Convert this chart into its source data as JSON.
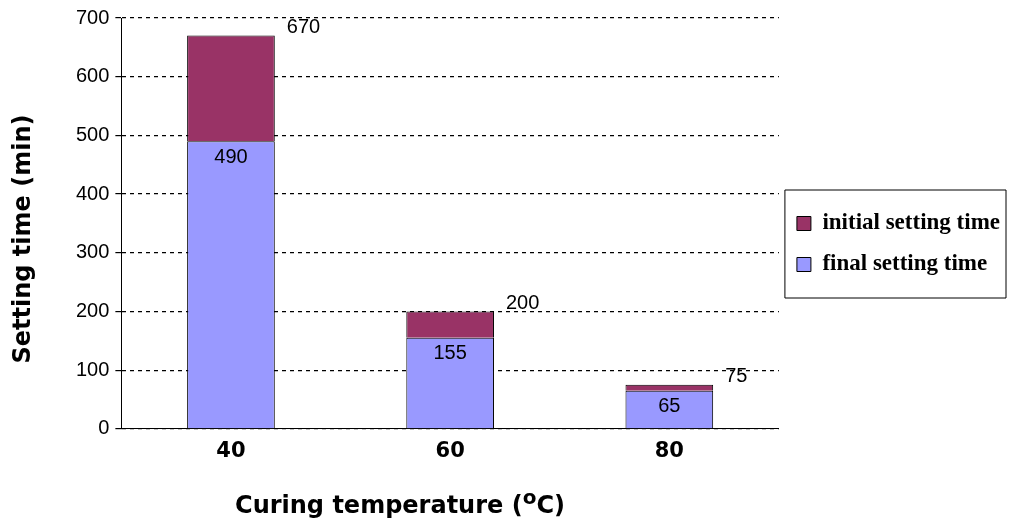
{
  "chart_data": {
    "type": "bar",
    "xlabel": "Curing temperature ($^{o}$C)",
    "ylabel": "Setting time (min)",
    "categories": [
      "40",
      "60",
      "80"
    ],
    "series": [
      {
        "name": "final setting time",
        "color": "#9999ff",
        "values": [
          490,
          155,
          65
        ],
        "value_labels": [
          "490",
          "155",
          "65"
        ]
      },
      {
        "name": "initial setting time",
        "color": "#993366",
        "values": [
          180,
          45,
          10
        ]
      }
    ],
    "stacked": true,
    "totals": [
      "670",
      "200",
      "75"
    ],
    "ylim": [
      0,
      700
    ],
    "yticks": [
      0,
      100,
      200,
      300,
      400,
      500,
      600,
      700
    ],
    "grid": "y",
    "legend": "right"
  }
}
